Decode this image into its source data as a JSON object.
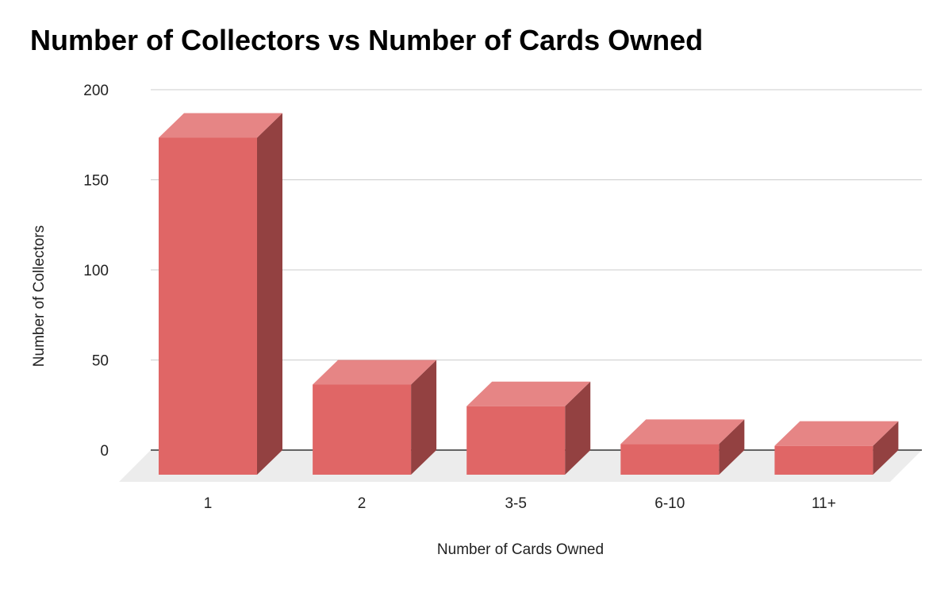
{
  "chart_data": {
    "type": "bar",
    "style": "3d",
    "title": "Number of Collectors vs Number of Cards Owned",
    "xlabel": "Number of Cards Owned",
    "ylabel": "Number of Collectors",
    "categories": [
      "1",
      "2",
      "3-5",
      "6-10",
      "11+"
    ],
    "values": [
      187,
      50,
      38,
      17,
      16
    ],
    "ylim": [
      0,
      200
    ],
    "yticks": [
      0,
      50,
      100,
      150,
      200
    ],
    "grid": true,
    "legend": "none",
    "colors": {
      "bar_front": "#e06666",
      "bar_top": "#e68585",
      "bar_side": "#934141",
      "floor": "#ececec",
      "gridline": "#cccccc",
      "baseline": "#333333"
    }
  }
}
